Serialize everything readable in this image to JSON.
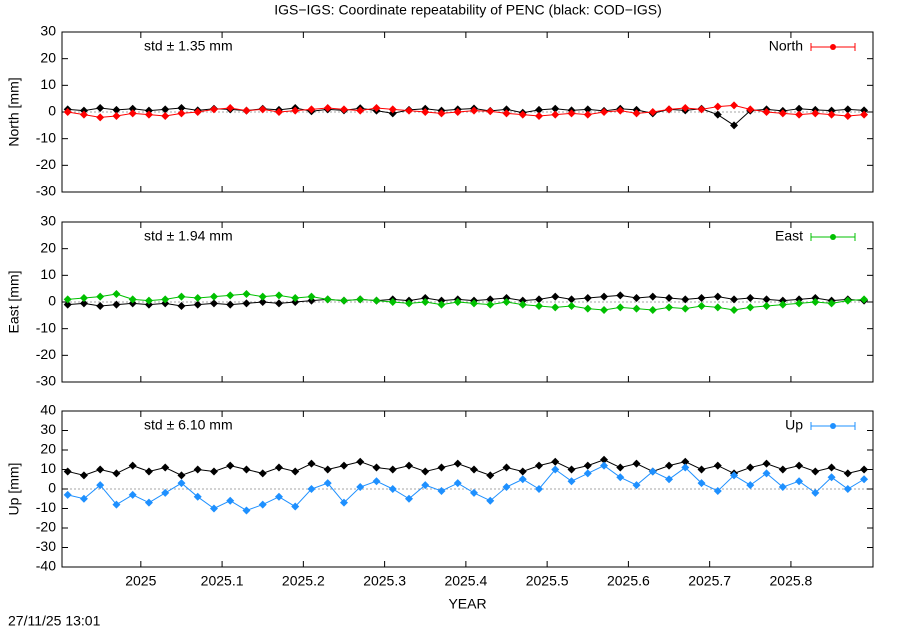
{
  "title": "IGS−IGS: Coordinate repeatability of PENC (black: COD−IGS)",
  "footer": "27/11/25 13:01",
  "chart_data": [
    {
      "type": "line",
      "ylabel": "North [mm]",
      "annotation": "std ± 1.35 mm",
      "xlim": [
        2024.903,
        2025.901
      ],
      "xticks": [
        2025,
        2025.1,
        2025.2,
        2025.3,
        2025.4,
        2025.5,
        2025.6,
        2025.7,
        2025.8
      ],
      "show_xticklabels": false,
      "ylim": [
        -30,
        30
      ],
      "yticks": [
        -30,
        -20,
        -10,
        0,
        10,
        20,
        30
      ],
      "zeroline": true,
      "legend": "top-right",
      "x": [
        2024.91,
        2024.93,
        2024.95,
        2024.97,
        2024.99,
        2025.01,
        2025.03,
        2025.05,
        2025.07,
        2025.09,
        2025.11,
        2025.13,
        2025.15,
        2025.17,
        2025.19,
        2025.21,
        2025.23,
        2025.25,
        2025.27,
        2025.29,
        2025.31,
        2025.33,
        2025.35,
        2025.37,
        2025.39,
        2025.41,
        2025.43,
        2025.45,
        2025.47,
        2025.49,
        2025.51,
        2025.53,
        2025.55,
        2025.57,
        2025.59,
        2025.61,
        2025.63,
        2025.65,
        2025.67,
        2025.69,
        2025.71,
        2025.73,
        2025.75,
        2025.77,
        2025.79,
        2025.81,
        2025.83,
        2025.85,
        2025.87,
        2025.89
      ],
      "series": [
        {
          "color": "#000000",
          "values": [
            1,
            0.5,
            1.5,
            0.8,
            1.2,
            0.5,
            1,
            1.5,
            0.6,
            1.2,
            1,
            0.5,
            1.2,
            0.8,
            1.5,
            0.3,
            1,
            0.6,
            1.4,
            0.5,
            -0.5,
            0.8,
            1.2,
            0.5,
            1,
            1.3,
            0.4,
            1,
            -0.3,
            0.8,
            1.2,
            0.6,
            1,
            0.4,
            1.2,
            0.8,
            -0.5,
            1,
            0.6,
            1.2,
            -1,
            -5,
            0.5,
            1,
            0.4,
            1.2,
            0.8,
            0.5,
            1,
            0.6
          ]
        },
        {
          "name": "North",
          "color": "#ff0000",
          "values": [
            0,
            -1,
            -2,
            -1.5,
            -0.5,
            -1,
            -1.5,
            -0.5,
            0,
            1,
            1.5,
            0.5,
            1,
            0,
            0.5,
            1,
            1.5,
            1,
            0.5,
            1.5,
            1,
            0.5,
            0,
            -0.5,
            0,
            0.5,
            0.3,
            -0.5,
            -1,
            -1.5,
            -1,
            -0.5,
            -1,
            0,
            0.5,
            -0.5,
            0,
            1,
            1.5,
            1,
            2,
            2.5,
            1,
            0,
            -0.5,
            -1,
            -0.5,
            -1,
            -1.5,
            -1
          ]
        }
      ]
    },
    {
      "type": "line",
      "ylabel": "East [mm]",
      "annotation": "std ± 1.94 mm",
      "xlim": [
        2024.903,
        2025.901
      ],
      "xticks": [
        2025,
        2025.1,
        2025.2,
        2025.3,
        2025.4,
        2025.5,
        2025.6,
        2025.7,
        2025.8
      ],
      "show_xticklabels": false,
      "ylim": [
        -30,
        30
      ],
      "yticks": [
        -30,
        -20,
        -10,
        0,
        10,
        20,
        30
      ],
      "zeroline": true,
      "legend": "top-right",
      "x": [
        2024.91,
        2024.93,
        2024.95,
        2024.97,
        2024.99,
        2025.01,
        2025.03,
        2025.05,
        2025.07,
        2025.09,
        2025.11,
        2025.13,
        2025.15,
        2025.17,
        2025.19,
        2025.21,
        2025.23,
        2025.25,
        2025.27,
        2025.29,
        2025.31,
        2025.33,
        2025.35,
        2025.37,
        2025.39,
        2025.41,
        2025.43,
        2025.45,
        2025.47,
        2025.49,
        2025.51,
        2025.53,
        2025.55,
        2025.57,
        2025.59,
        2025.61,
        2025.63,
        2025.65,
        2025.67,
        2025.69,
        2025.71,
        2025.73,
        2025.75,
        2025.77,
        2025.79,
        2025.81,
        2025.83,
        2025.85,
        2025.87,
        2025.89
      ],
      "series": [
        {
          "color": "#000000",
          "values": [
            -1,
            -0.5,
            -1.5,
            -1,
            -0.5,
            -1,
            -0.5,
            -1.5,
            -1,
            -0.5,
            -1,
            -0.5,
            0,
            -0.5,
            0,
            0.5,
            1,
            0.5,
            1,
            0.5,
            1,
            0.5,
            1.5,
            0.5,
            1,
            0.5,
            1,
            1.5,
            0.5,
            1,
            2,
            1,
            1.5,
            2,
            2.5,
            1.5,
            2,
            1.5,
            1,
            1.5,
            2,
            1,
            1.5,
            1,
            0.5,
            1,
            1.5,
            0.5,
            1,
            0.5
          ]
        },
        {
          "name": "East",
          "color": "#00c000",
          "values": [
            1,
            1.5,
            2,
            3,
            1,
            0.5,
            1,
            2,
            1.5,
            2,
            2.5,
            3,
            2,
            2.5,
            1.5,
            2,
            1,
            0.5,
            1,
            0.5,
            0,
            -0.5,
            0,
            -1,
            0,
            -0.5,
            -1,
            0,
            -1,
            -1.5,
            -2,
            -1.5,
            -2.5,
            -3,
            -2,
            -2.5,
            -3,
            -2,
            -2.5,
            -1.5,
            -2,
            -3,
            -2,
            -1.5,
            -1,
            -0.5,
            0,
            -0.5,
            0.5,
            1
          ]
        }
      ]
    },
    {
      "type": "line",
      "ylabel": "Up [mm]",
      "annotation": "std ± 6.10 mm",
      "xlabel": "YEAR",
      "xlim": [
        2024.903,
        2025.901
      ],
      "xticks": [
        2025,
        2025.1,
        2025.2,
        2025.3,
        2025.4,
        2025.5,
        2025.6,
        2025.7,
        2025.8
      ],
      "show_xticklabels": true,
      "ylim": [
        -40,
        40
      ],
      "yticks": [
        -40,
        -30,
        -20,
        -10,
        0,
        10,
        20,
        30,
        40
      ],
      "zeroline": true,
      "legend": "top-right",
      "x": [
        2024.91,
        2024.93,
        2024.95,
        2024.97,
        2024.99,
        2025.01,
        2025.03,
        2025.05,
        2025.07,
        2025.09,
        2025.11,
        2025.13,
        2025.15,
        2025.17,
        2025.19,
        2025.21,
        2025.23,
        2025.25,
        2025.27,
        2025.29,
        2025.31,
        2025.33,
        2025.35,
        2025.37,
        2025.39,
        2025.41,
        2025.43,
        2025.45,
        2025.47,
        2025.49,
        2025.51,
        2025.53,
        2025.55,
        2025.57,
        2025.59,
        2025.61,
        2025.63,
        2025.65,
        2025.67,
        2025.69,
        2025.71,
        2025.73,
        2025.75,
        2025.77,
        2025.79,
        2025.81,
        2025.83,
        2025.85,
        2025.87,
        2025.89
      ],
      "series": [
        {
          "color": "#000000",
          "values": [
            9,
            7,
            10,
            8,
            12,
            9,
            11,
            7,
            10,
            9,
            12,
            10,
            8,
            11,
            9,
            13,
            10,
            12,
            14,
            11,
            10,
            12,
            9,
            11,
            13,
            10,
            7,
            11,
            9,
            12,
            14,
            10,
            12,
            15,
            11,
            13,
            9,
            12,
            14,
            10,
            12,
            8,
            11,
            13,
            10,
            12,
            9,
            11,
            8,
            10
          ]
        },
        {
          "name": "Up",
          "color": "#1e90ff",
          "values": [
            -3,
            -5,
            2,
            -8,
            -3,
            -7,
            -2,
            3,
            -4,
            -10,
            -6,
            -11,
            -8,
            -4,
            -9,
            0,
            3,
            -7,
            1,
            4,
            0,
            -5,
            2,
            -1,
            3,
            -2,
            -6,
            1,
            5,
            0,
            10,
            4,
            8,
            12,
            6,
            2,
            9,
            5,
            11,
            3,
            -1,
            7,
            2,
            8,
            1,
            4,
            -2,
            6,
            0,
            5
          ]
        }
      ]
    }
  ]
}
